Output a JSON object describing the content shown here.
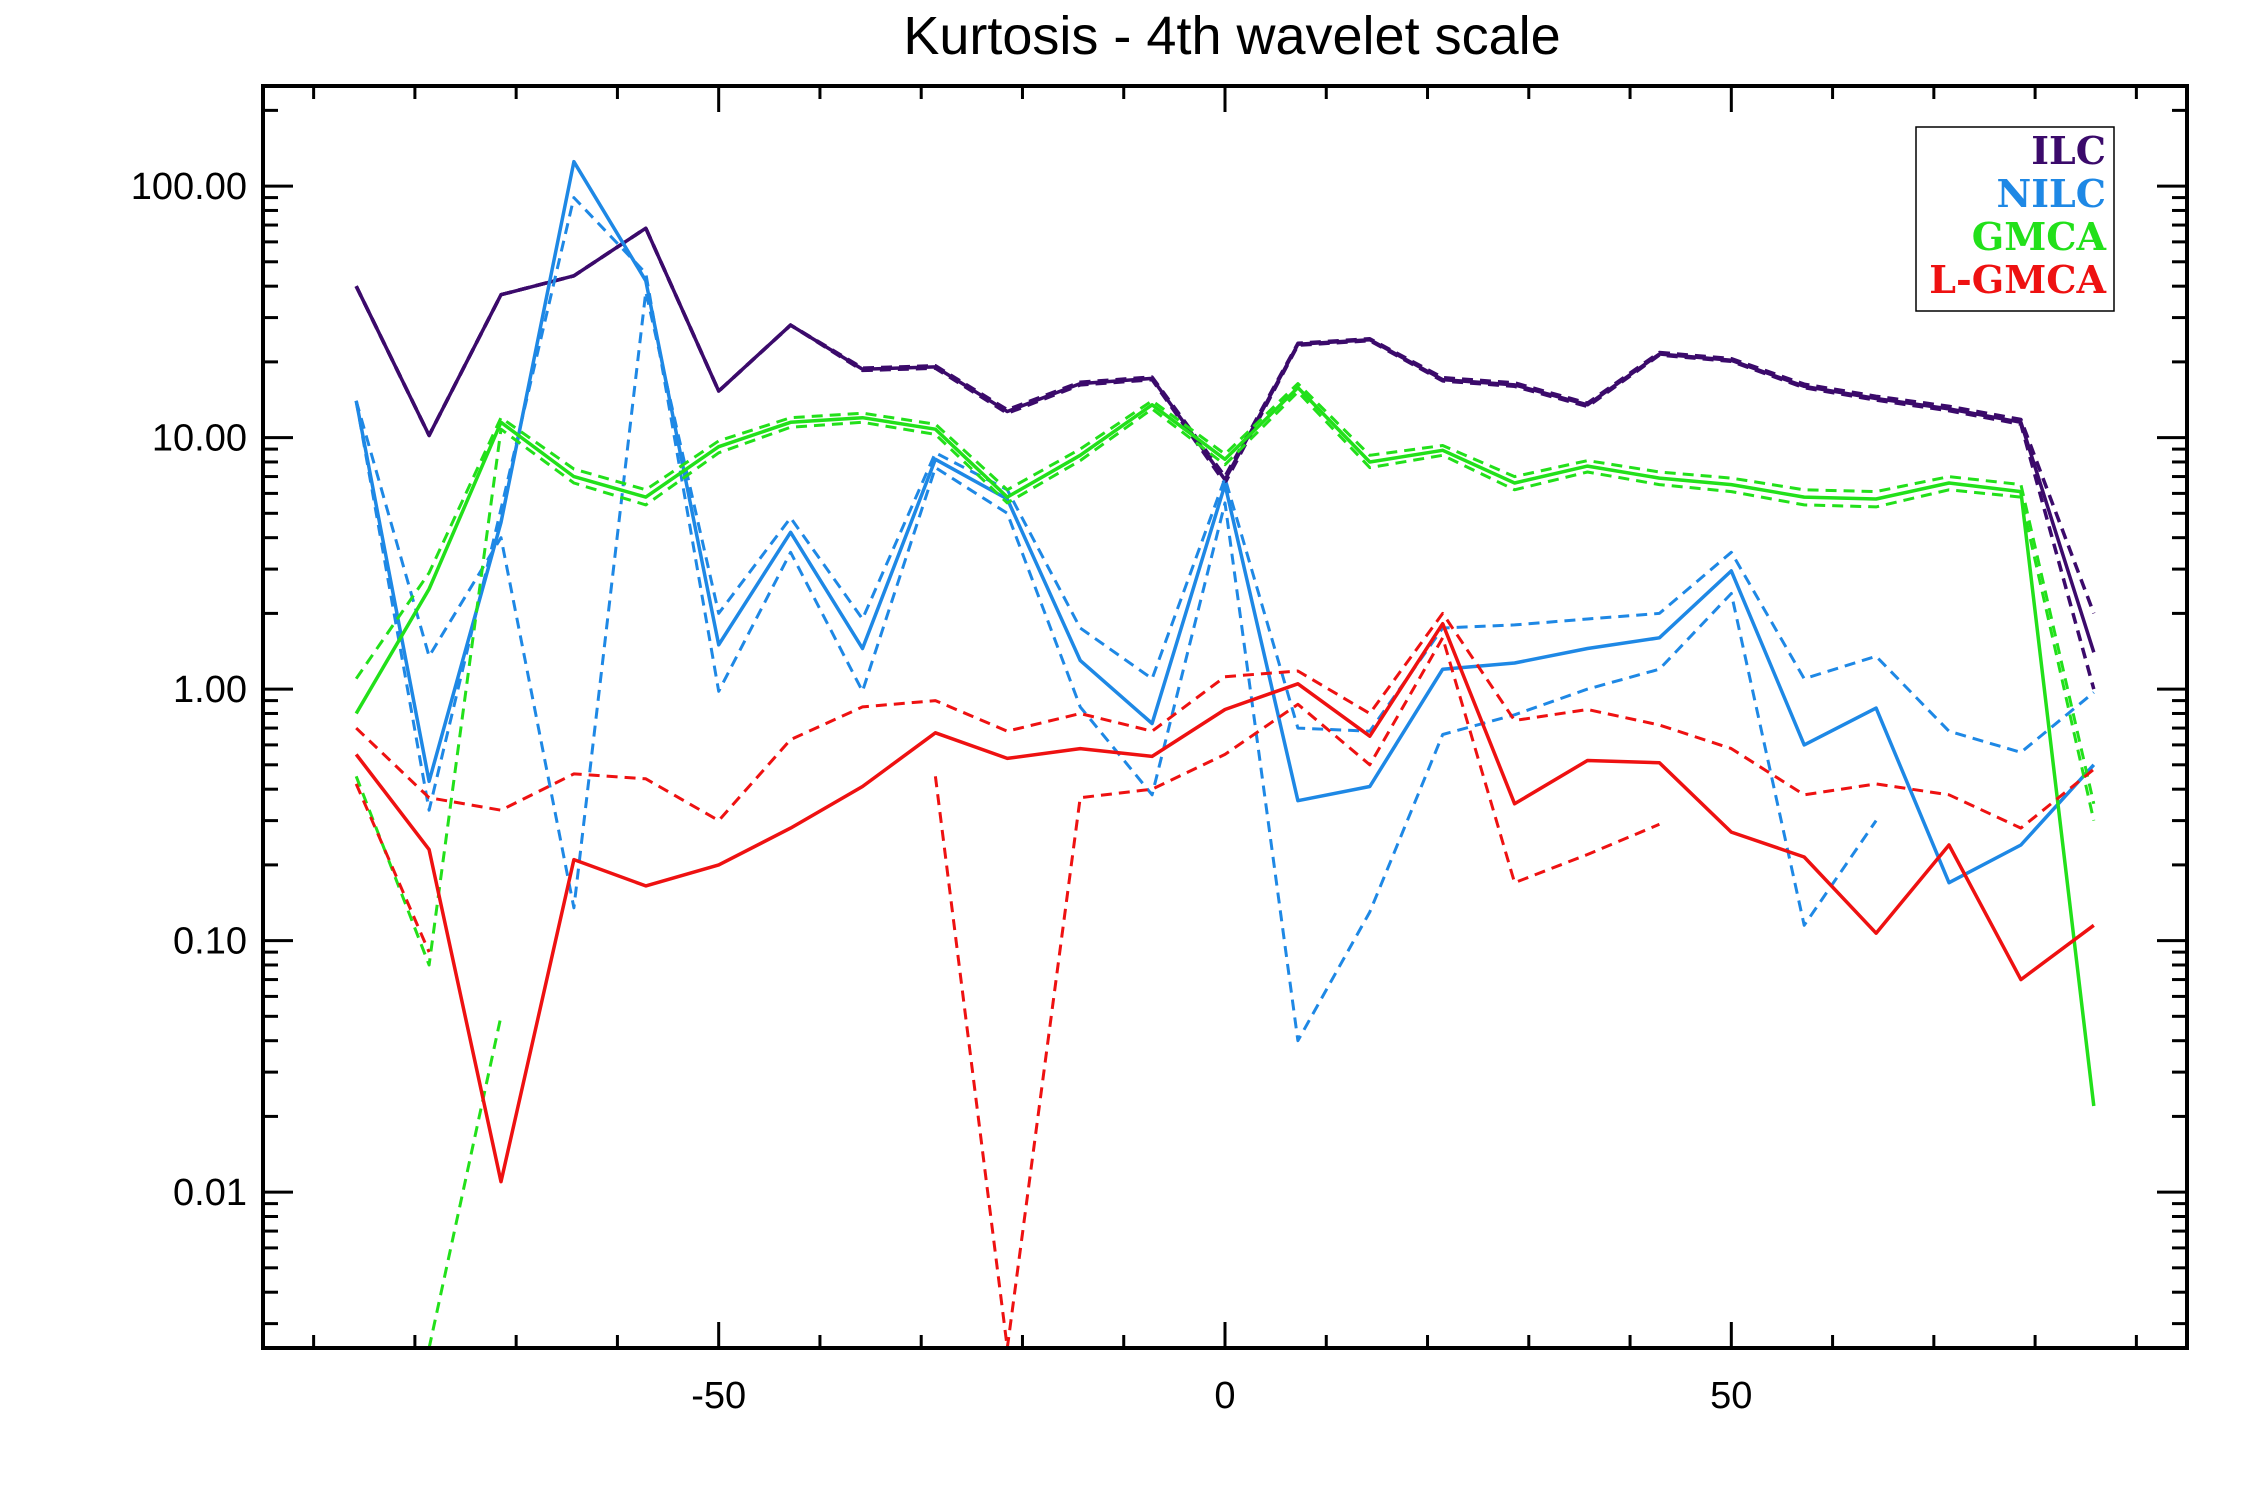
{
  "chart_data": {
    "type": "line",
    "title": "Kurtosis - 4th wavelet scale",
    "xlabel": "",
    "ylabel": "",
    "xlim": [
      -95,
      95
    ],
    "ylim": [
      0.0024,
      250
    ],
    "yscale": "log",
    "xticks": [
      -50,
      0,
      50
    ],
    "xtick_labels": [
      "-50",
      "0",
      "50"
    ],
    "yticks": [
      0.01,
      0.1,
      1,
      10,
      100
    ],
    "ytick_labels": [
      "0.01",
      "0.10",
      "1.00",
      "10.00",
      "100.00"
    ],
    "grid": false,
    "legend_position": "top-right",
    "legend": [
      {
        "label": "ILC",
        "color": "#3b0a6b"
      },
      {
        "label": "NILC",
        "color": "#1e88e5"
      },
      {
        "label": "GMCA",
        "color": "#22e01a"
      },
      {
        "label": "L-GMCA",
        "color": "#ee1111"
      }
    ],
    "x": [
      -85.8,
      -78.6,
      -71.5,
      -64.3,
      -57.2,
      -50.0,
      -42.9,
      -35.8,
      -28.6,
      -21.5,
      -14.3,
      -7.2,
      0,
      7.2,
      14.3,
      21.5,
      28.6,
      35.8,
      42.9,
      50.0,
      57.2,
      64.3,
      71.5,
      78.6,
      85.8
    ],
    "series": [
      {
        "group": "ILC",
        "style": "solid",
        "color": "#3b0a6b",
        "width": 3.5,
        "values": [
          40,
          10.2,
          37,
          44,
          68,
          15.3,
          28,
          18.7,
          19.1,
          12.7,
          16.4,
          17.2,
          6.8,
          23.5,
          24.5,
          17,
          16.2,
          13.5,
          21.5,
          20.3,
          16,
          14.3,
          13,
          11.5,
          1.4
        ]
      },
      {
        "group": "ILC",
        "style": "dashed",
        "color": "#3b0a6b",
        "width": 3.5,
        "values": [
          40,
          10.2,
          37,
          44,
          68,
          15.3,
          28,
          18.9,
          19.3,
          12.9,
          16.6,
          17.4,
          7.0,
          23.7,
          24.7,
          17.3,
          16.5,
          13.7,
          21.8,
          20.6,
          16.3,
          14.6,
          13.3,
          11.8,
          2.0
        ]
      },
      {
        "group": "ILC",
        "style": "dashed",
        "color": "#3b0a6b",
        "width": 3.5,
        "values": [
          40,
          10.2,
          37,
          44,
          68,
          15.3,
          28,
          18.5,
          18.9,
          12.5,
          16.2,
          17.0,
          6.6,
          23.3,
          24.3,
          16.8,
          16.0,
          13.3,
          21.3,
          20.1,
          15.8,
          14.1,
          12.8,
          11.3,
          1.0
        ]
      },
      {
        "group": "NILC",
        "style": "solid",
        "color": "#1e88e5",
        "width": 3.5,
        "values": [
          14,
          0.43,
          4.6,
          125,
          42,
          1.5,
          4.2,
          1.45,
          8.2,
          5.7,
          1.3,
          0.73,
          6.5,
          0.36,
          0.41,
          1.2,
          1.27,
          1.45,
          1.6,
          2.95,
          0.6,
          0.84,
          0.17,
          0.24,
          0.5
        ]
      },
      {
        "group": "NILC",
        "style": "dashed",
        "color": "#1e88e5",
        "width": 3,
        "values": [
          14,
          1.35,
          4.0,
          0.135,
          38,
          2.0,
          4.8,
          1.9,
          8.7,
          6.2,
          1.75,
          1.1,
          6.9,
          0.7,
          0.68,
          1.75,
          1.8,
          1.9,
          2.0,
          3.5,
          1.1,
          1.35,
          0.68,
          0.56,
          0.97
        ]
      },
      {
        "group": "NILC",
        "style": "dashed",
        "color": "#1e88e5",
        "width": 3,
        "values": [
          14,
          0.33,
          5.2,
          90,
          45,
          0.98,
          3.5,
          0.98,
          7.6,
          5.0,
          0.85,
          0.38,
          5.5,
          0.04,
          0.13,
          0.66,
          0.79,
          1.0,
          1.2,
          2.4,
          0.115,
          0.3,
          null,
          null,
          null
        ]
      },
      {
        "group": "GMCA",
        "style": "solid",
        "color": "#22e01a",
        "width": 3.5,
        "values": [
          0.8,
          2.5,
          11.5,
          7.0,
          5.8,
          9.2,
          11.5,
          12.0,
          10.8,
          5.8,
          8.5,
          13.5,
          8.2,
          15.8,
          8.0,
          8.9,
          6.6,
          7.7,
          6.9,
          6.5,
          5.8,
          5.7,
          6.6,
          6.1,
          0.022
        ]
      },
      {
        "group": "GMCA",
        "style": "dashed",
        "color": "#22e01a",
        "width": 3,
        "values": [
          1.1,
          2.9,
          12.0,
          7.5,
          6.2,
          9.7,
          12.0,
          12.5,
          11.3,
          6.2,
          9.0,
          14.0,
          8.6,
          16.4,
          8.5,
          9.3,
          7.0,
          8.1,
          7.3,
          6.9,
          6.2,
          6.1,
          7.0,
          6.5,
          0.35
        ]
      },
      {
        "group": "GMCA",
        "style": "dashed",
        "color": "#22e01a",
        "width": 3,
        "values": [
          0.45,
          0.08,
          10.8,
          6.6,
          5.4,
          8.7,
          11.0,
          11.5,
          10.3,
          5.5,
          8.1,
          13.0,
          7.8,
          15.2,
          7.6,
          8.5,
          6.2,
          7.3,
          6.5,
          6.1,
          5.4,
          5.3,
          6.2,
          5.8,
          0.3
        ]
      },
      {
        "group": "GMCA",
        "style": "dashed",
        "color": "#22e01a",
        "width": 3,
        "values": [
          null,
          0.0024,
          0.05,
          null,
          null,
          null,
          null,
          null,
          null,
          null,
          null,
          null,
          null,
          null,
          null,
          null,
          null,
          null,
          null,
          null,
          null,
          null,
          null,
          null,
          null
        ]
      },
      {
        "group": "L-GMCA",
        "style": "solid",
        "color": "#ee1111",
        "width": 3.5,
        "values": [
          0.55,
          0.23,
          0.011,
          0.21,
          0.165,
          0.2,
          0.28,
          0.41,
          0.67,
          0.53,
          0.58,
          0.54,
          0.83,
          1.05,
          0.65,
          1.82,
          0.35,
          0.52,
          0.51,
          0.27,
          0.215,
          0.107,
          0.24,
          0.07,
          0.115
        ]
      },
      {
        "group": "L-GMCA",
        "style": "dashed",
        "color": "#ee1111",
        "width": 3,
        "values": [
          0.7,
          0.37,
          0.33,
          0.46,
          0.44,
          0.3,
          0.63,
          0.85,
          0.9,
          0.68,
          0.8,
          0.68,
          1.12,
          1.18,
          0.8,
          2.0,
          0.75,
          0.83,
          0.72,
          0.58,
          0.38,
          0.42,
          0.38,
          0.28,
          0.48
        ]
      },
      {
        "group": "L-GMCA",
        "style": "dashed",
        "color": "#ee1111",
        "width": 3,
        "values": [
          0.42,
          0.09,
          null,
          null,
          null,
          null,
          null,
          null,
          null,
          null,
          null,
          null,
          null,
          null,
          null,
          null,
          null,
          null,
          null,
          null,
          null,
          null,
          null,
          null,
          null
        ]
      },
      {
        "group": "L-GMCA",
        "style": "dashed",
        "color": "#ee1111",
        "width": 3,
        "values": [
          null,
          null,
          null,
          null,
          null,
          null,
          null,
          null,
          0.45,
          0.0024,
          null,
          null,
          null,
          null,
          null,
          null,
          null,
          null,
          null,
          null,
          null,
          null,
          null,
          null,
          null
        ]
      },
      {
        "group": "L-GMCA",
        "style": "dashed",
        "color": "#ee1111",
        "width": 3,
        "values": [
          null,
          null,
          null,
          null,
          null,
          null,
          null,
          null,
          null,
          0.0024,
          0.37,
          0.4,
          0.55,
          0.87,
          0.5,
          1.6,
          0.17,
          0.22,
          0.29,
          null,
          null,
          null,
          null,
          null,
          null
        ]
      }
    ]
  }
}
